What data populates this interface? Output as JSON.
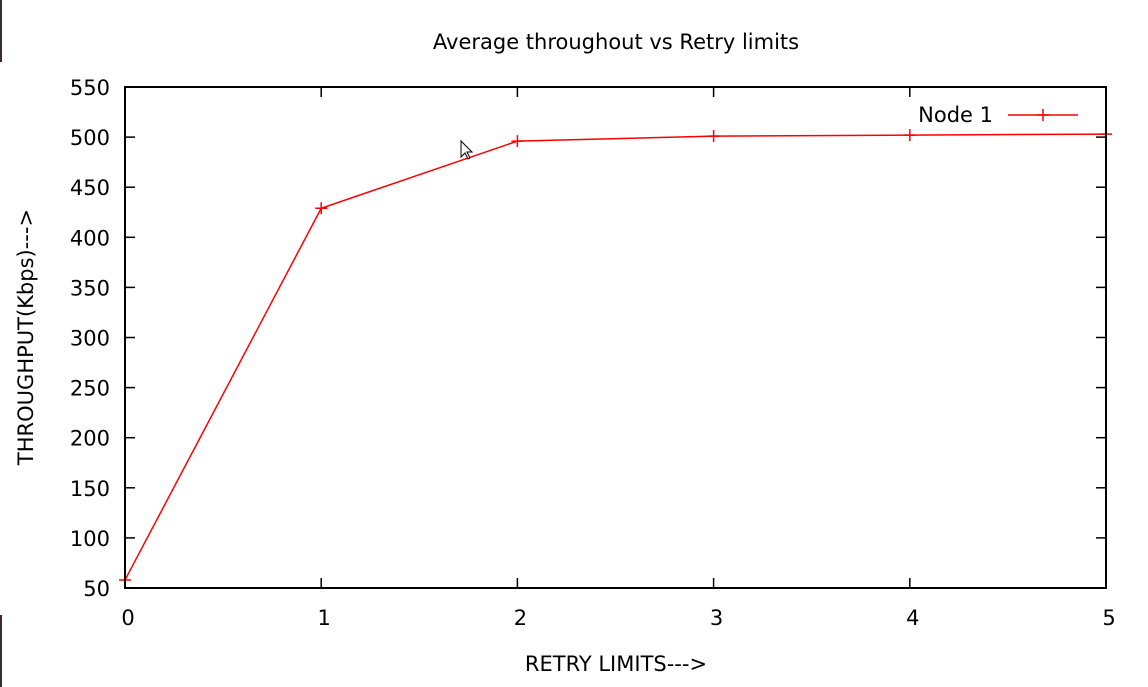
{
  "chart_data": {
    "type": "line",
    "title": "Average throughout vs Retry limits",
    "xlabel": "RETRY LIMITS--->",
    "ylabel": "THROUGHPUT(Kbps)--->",
    "xlim": [
      0,
      5
    ],
    "ylim": [
      50,
      550
    ],
    "xticks": [
      "0",
      "1",
      "2",
      "3",
      "4",
      "5"
    ],
    "yticks": [
      "50",
      "100",
      "150",
      "200",
      "250",
      "300",
      "350",
      "400",
      "450",
      "500",
      "550"
    ],
    "grid": false,
    "legend_position": "top-right",
    "series": [
      {
        "name": "Node 1",
        "color": "#ff0000",
        "marker": "plus",
        "x": [
          0,
          1,
          2,
          3,
          4,
          5
        ],
        "y": [
          58,
          429,
          496,
          501,
          502,
          503
        ]
      }
    ]
  },
  "colors": {
    "line": "#ff0000",
    "axis": "#000000",
    "background": "#ffffff"
  },
  "icons": {
    "cursor": "mouse-pointer-icon"
  }
}
